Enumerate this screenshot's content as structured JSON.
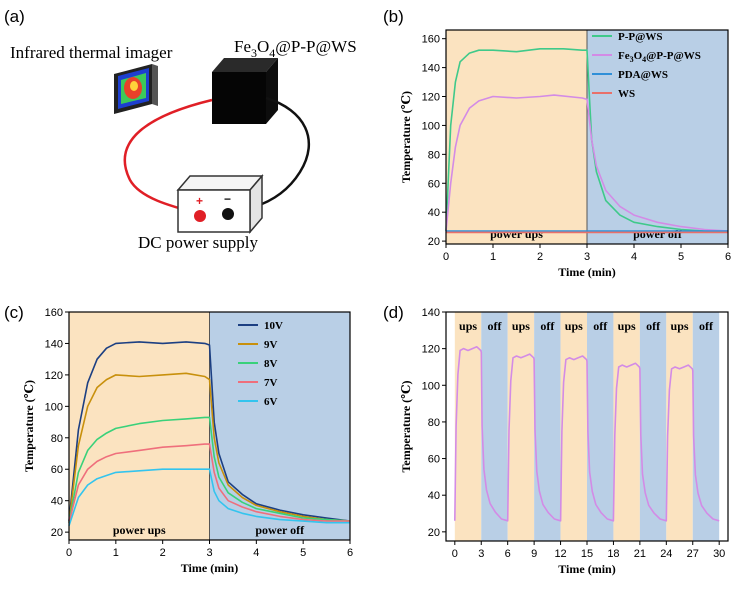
{
  "colors": {
    "on_region": "#fbe3c0",
    "off_region": "#b9cfe6",
    "green": "#3fc98a",
    "violet": "#d38be6",
    "blue": "#2f8fd8",
    "red": "#e9706a",
    "navy": "#1c3f82",
    "gold": "#c8900c",
    "green8": "#39d17a",
    "pink7": "#ef6f7c",
    "cyan6": "#33c4ee"
  },
  "panel_a": {
    "label": "(a)",
    "imager_label": "Infrared thermal imager",
    "sample_label_prefix": "Fe",
    "sample_sub1": "3",
    "sample_mid": "O",
    "sample_sub2": "4",
    "sample_suffix": "@P-P@WS",
    "power_label": "DC power supply",
    "plus": "+",
    "minus": "−"
  },
  "chart_data": [
    {
      "panel": "(b)",
      "type": "line",
      "xlabel": "Time (min)",
      "ylabel": "Temperature (℃)",
      "xlim": [
        0,
        6
      ],
      "ylim": [
        18,
        166
      ],
      "xticks": [
        0,
        1,
        2,
        3,
        4,
        5,
        6
      ],
      "yticks": [
        20,
        40,
        60,
        80,
        100,
        120,
        140,
        160
      ],
      "regions": [
        {
          "label": "power ups",
          "from": 0,
          "to": 3,
          "color_key": "on_region"
        },
        {
          "label": "power off",
          "from": 3,
          "to": 6,
          "color_key": "off_region"
        }
      ],
      "legend_position": "top-right",
      "series": [
        {
          "name": "P-P@WS",
          "color_key": "green",
          "x": [
            0,
            0.1,
            0.2,
            0.3,
            0.5,
            0.7,
            1.0,
            1.5,
            2.0,
            2.5,
            2.9,
            3.0,
            3.05,
            3.1,
            3.2,
            3.4,
            3.7,
            4.0,
            4.5,
            5.0,
            5.5,
            6.0
          ],
          "y": [
            27,
            100,
            130,
            144,
            150,
            152,
            152,
            151,
            153,
            153,
            152,
            152,
            120,
            90,
            68,
            48,
            38,
            33,
            30,
            28,
            27,
            27
          ]
        },
        {
          "name": "Fe3O4@P-P@WS",
          "color_key": "violet",
          "x": [
            0,
            0.1,
            0.2,
            0.3,
            0.5,
            0.7,
            1.0,
            1.5,
            2.0,
            2.3,
            2.9,
            3.0,
            3.1,
            3.2,
            3.4,
            3.7,
            4.0,
            4.5,
            5.0,
            5.5,
            6.0
          ],
          "y": [
            27,
            60,
            85,
            100,
            112,
            117,
            120,
            119,
            120,
            121,
            119,
            118,
            90,
            72,
            55,
            44,
            38,
            33,
            30,
            28,
            27
          ]
        },
        {
          "name": "PDA@WS",
          "color_key": "blue",
          "x": [
            0,
            1,
            2,
            3,
            4,
            5,
            6
          ],
          "y": [
            27,
            27,
            27,
            27,
            27,
            27,
            27
          ]
        },
        {
          "name": "WS",
          "color_key": "red",
          "x": [
            0,
            1,
            2,
            3,
            4,
            5,
            6
          ],
          "y": [
            26,
            26,
            26,
            26,
            26,
            26,
            26
          ]
        }
      ]
    },
    {
      "panel": "(c)",
      "type": "line",
      "xlabel": "Time (min)",
      "ylabel": "Temperature (℃)",
      "xlim": [
        0,
        6
      ],
      "ylim": [
        15,
        160
      ],
      "xticks": [
        0,
        1,
        2,
        3,
        4,
        5,
        6
      ],
      "yticks": [
        20,
        40,
        60,
        80,
        100,
        120,
        140,
        160
      ],
      "regions": [
        {
          "label": "power ups",
          "from": 0,
          "to": 3,
          "color_key": "on_region"
        },
        {
          "label": "power off",
          "from": 3,
          "to": 6,
          "color_key": "off_region"
        }
      ],
      "legend_position": "top-right",
      "series": [
        {
          "name": "10V",
          "color_key": "navy",
          "x": [
            0,
            0.2,
            0.4,
            0.6,
            0.8,
            1.0,
            1.5,
            2.0,
            2.5,
            2.9,
            3.0,
            3.1,
            3.2,
            3.4,
            3.7,
            4.0,
            4.5,
            5.0,
            5.5,
            6.0
          ],
          "y": [
            27,
            85,
            115,
            130,
            137,
            140,
            141,
            140,
            141,
            140,
            139,
            90,
            70,
            52,
            44,
            38,
            34,
            31,
            29,
            27
          ]
        },
        {
          "name": "9V",
          "color_key": "gold",
          "x": [
            0,
            0.2,
            0.4,
            0.6,
            0.8,
            1.0,
            1.5,
            2.0,
            2.5,
            2.9,
            3.0,
            3.1,
            3.2,
            3.4,
            3.7,
            4.0,
            4.5,
            5.0,
            5.5,
            6.0
          ],
          "y": [
            26,
            75,
            100,
            112,
            117,
            120,
            119,
            120,
            121,
            119,
            117,
            80,
            64,
            50,
            42,
            37,
            33,
            30,
            28,
            27
          ]
        },
        {
          "name": "8V",
          "color_key": "green8",
          "x": [
            0,
            0.2,
            0.4,
            0.6,
            0.8,
            1.0,
            1.5,
            2.0,
            2.5,
            2.9,
            3.0,
            3.1,
            3.2,
            3.4,
            3.7,
            4.0,
            4.5,
            5.0,
            5.5,
            6.0
          ],
          "y": [
            26,
            58,
            72,
            79,
            83,
            86,
            89,
            91,
            92,
            93,
            93,
            68,
            55,
            45,
            39,
            35,
            32,
            29,
            28,
            27
          ]
        },
        {
          "name": "7V",
          "color_key": "pink7",
          "x": [
            0,
            0.2,
            0.4,
            0.6,
            0.8,
            1.0,
            1.5,
            2.0,
            2.5,
            2.9,
            3.0,
            3.1,
            3.2,
            3.4,
            3.7,
            4.0,
            4.5,
            5.0,
            5.5,
            6.0
          ],
          "y": [
            26,
            50,
            60,
            65,
            68,
            70,
            72,
            74,
            75,
            76,
            76,
            58,
            48,
            40,
            36,
            33,
            30,
            28,
            27,
            27
          ]
        },
        {
          "name": "6V",
          "color_key": "cyan6",
          "x": [
            0,
            0.2,
            0.4,
            0.6,
            0.8,
            1.0,
            1.5,
            2.0,
            2.5,
            2.9,
            3.0,
            3.1,
            3.2,
            3.4,
            3.7,
            4.0,
            4.5,
            5.0,
            5.5,
            6.0
          ],
          "y": [
            24,
            42,
            50,
            54,
            56,
            58,
            59,
            60,
            60,
            60,
            60,
            46,
            40,
            35,
            32,
            30,
            28,
            27,
            26,
            26
          ]
        }
      ]
    },
    {
      "panel": "(d)",
      "type": "line",
      "xlabel": "Time (min)",
      "ylabel": "Temperature (℃)",
      "xlim": [
        -1,
        31
      ],
      "ylim": [
        15,
        140
      ],
      "xticks": [
        0,
        3,
        6,
        9,
        12,
        15,
        18,
        21,
        24,
        27,
        30
      ],
      "yticks": [
        20,
        40,
        60,
        80,
        100,
        120,
        140
      ],
      "cycles": [
        {
          "on_from": 0,
          "on_to": 3,
          "off_to": 6,
          "peak": 120
        },
        {
          "on_from": 6,
          "on_to": 9,
          "off_to": 12,
          "peak": 116
        },
        {
          "on_from": 12,
          "on_to": 15,
          "off_to": 18,
          "peak": 115
        },
        {
          "on_from": 18,
          "on_to": 21,
          "off_to": 24,
          "peak": 111
        },
        {
          "on_from": 24,
          "on_to": 27,
          "off_to": 30,
          "peak": 110
        }
      ],
      "on_label": "ups",
      "off_label": "off",
      "base_temperature": 26,
      "series_color_key": "violet"
    }
  ]
}
